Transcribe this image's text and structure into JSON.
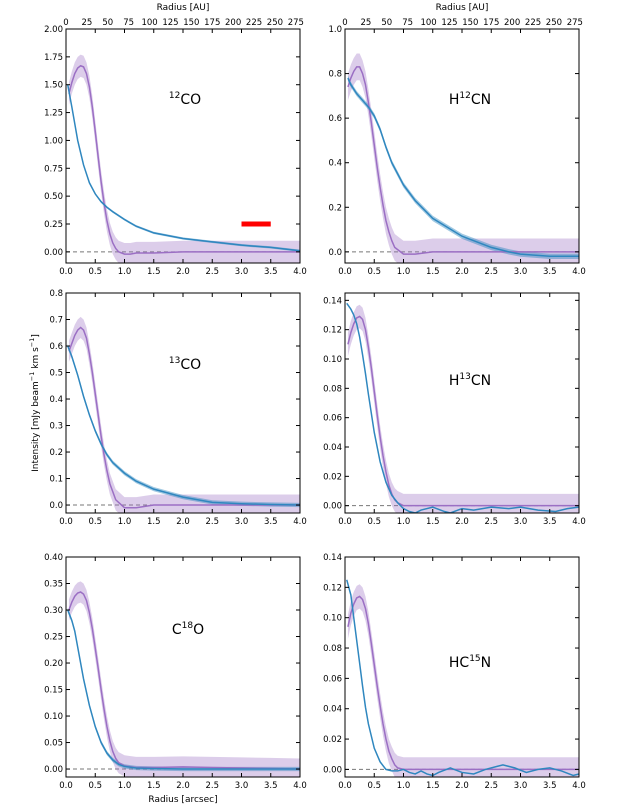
{
  "figure": {
    "top_axis_label": "Radius [AU]",
    "x_axis_label": "Radius [arcsec]",
    "y_axis_label": "Intensity [mJy beam",
    "y_axis_label_sup1": "−1",
    "y_axis_label_mid": " km s",
    "y_axis_label_sup2": "−1",
    "y_axis_label_end": "]"
  },
  "chart_data": [
    {
      "type": "line",
      "panel": "top-left",
      "label_parts": {
        "pre": "",
        "sup": "12",
        "post": "CO"
      },
      "xlim": [
        0,
        4
      ],
      "ylim": [
        -0.1,
        2.0
      ],
      "yticks": [
        "0.00",
        "0.25",
        "0.50",
        "0.75",
        "1.00",
        "1.25",
        "1.50",
        "1.75",
        "2.00"
      ],
      "ytick_values": [
        0,
        0.25,
        0.5,
        0.75,
        1.0,
        1.25,
        1.5,
        1.75,
        2.0
      ],
      "xticks": [
        "0.0",
        "0.5",
        "1.0",
        "1.5",
        "2.0",
        "2.5",
        "3.0",
        "3.5",
        "4.0"
      ],
      "top_xticks": [
        "0",
        "25",
        "50",
        "75",
        "100",
        "125",
        "150",
        "175",
        "200",
        "225",
        "250",
        "275"
      ],
      "beam_bar": {
        "x_start": 3.0,
        "x_end": 3.5,
        "y": 0.25,
        "color": "#ff0000"
      },
      "series": [
        {
          "color": "#9b6fc4",
          "band": 0.1,
          "x": [
            0.05,
            0.1,
            0.15,
            0.2,
            0.25,
            0.3,
            0.35,
            0.4,
            0.45,
            0.5,
            0.55,
            0.6,
            0.65,
            0.7,
            0.75,
            0.8,
            0.85,
            0.9,
            1.0,
            1.1,
            1.2,
            1.5,
            2.0,
            2.5,
            3.0,
            3.5,
            4.0
          ],
          "y": [
            1.42,
            1.52,
            1.6,
            1.65,
            1.67,
            1.66,
            1.6,
            1.48,
            1.3,
            1.08,
            0.85,
            0.63,
            0.44,
            0.28,
            0.16,
            0.08,
            0.03,
            0.0,
            -0.02,
            -0.02,
            -0.01,
            -0.01,
            0.0,
            0.0,
            0.0,
            0.0,
            0.0
          ]
        },
        {
          "color": "#2f87bf",
          "band": 0.01,
          "x": [
            0.03,
            0.1,
            0.2,
            0.3,
            0.4,
            0.5,
            0.6,
            0.7,
            0.8,
            1.0,
            1.2,
            1.5,
            2.0,
            2.5,
            3.0,
            3.5,
            4.0
          ],
          "y": [
            1.5,
            1.3,
            1.0,
            0.78,
            0.62,
            0.52,
            0.45,
            0.4,
            0.36,
            0.29,
            0.23,
            0.17,
            0.12,
            0.09,
            0.06,
            0.04,
            0.01
          ]
        }
      ]
    },
    {
      "type": "line",
      "panel": "top-right",
      "label_parts": {
        "pre": "H",
        "sup": "12",
        "post": "CN"
      },
      "xlim": [
        0,
        4
      ],
      "ylim": [
        -0.05,
        1.0
      ],
      "yticks": [
        "0.0",
        "0.2",
        "0.4",
        "0.6",
        "0.8",
        "1.0"
      ],
      "ytick_values": [
        0,
        0.2,
        0.4,
        0.6,
        0.8,
        1.0
      ],
      "xticks": [
        "0.0",
        "0.5",
        "1.0",
        "1.5",
        "2.0",
        "2.5",
        "3.0",
        "3.5",
        "4.0"
      ],
      "top_xticks": [
        "0",
        "25",
        "50",
        "75",
        "100",
        "125",
        "150",
        "175",
        "200",
        "225",
        "250",
        "275"
      ],
      "series": [
        {
          "color": "#9b6fc4",
          "band": 0.06,
          "x": [
            0.05,
            0.1,
            0.15,
            0.2,
            0.25,
            0.3,
            0.35,
            0.4,
            0.45,
            0.5,
            0.55,
            0.6,
            0.65,
            0.7,
            0.75,
            0.8,
            0.85,
            0.9,
            1.0,
            1.2,
            1.5,
            2.0,
            2.5,
            3.0,
            3.5,
            4.0
          ],
          "y": [
            0.74,
            0.78,
            0.81,
            0.83,
            0.83,
            0.8,
            0.75,
            0.67,
            0.58,
            0.48,
            0.38,
            0.29,
            0.21,
            0.14,
            0.09,
            0.05,
            0.02,
            0.01,
            -0.01,
            -0.01,
            0.0,
            0.0,
            0.0,
            0.0,
            0.0,
            0.0
          ]
        },
        {
          "color": "#2f87bf",
          "band": 0.012,
          "x": [
            0.05,
            0.1,
            0.2,
            0.3,
            0.4,
            0.5,
            0.6,
            0.7,
            0.8,
            1.0,
            1.2,
            1.5,
            2.0,
            2.5,
            2.8,
            3.0,
            3.5,
            4.0
          ],
          "y": [
            0.78,
            0.75,
            0.71,
            0.68,
            0.65,
            0.61,
            0.55,
            0.47,
            0.4,
            0.3,
            0.23,
            0.15,
            0.07,
            0.02,
            0.0,
            -0.01,
            -0.02,
            -0.02
          ]
        }
      ]
    },
    {
      "type": "line",
      "panel": "middle-left",
      "label_parts": {
        "pre": "",
        "sup": "13",
        "post": "CO"
      },
      "xlim": [
        0,
        4
      ],
      "ylim": [
        -0.03,
        0.8
      ],
      "yticks": [
        "0.0",
        "0.1",
        "0.2",
        "0.3",
        "0.4",
        "0.5",
        "0.6",
        "0.7",
        "0.8"
      ],
      "ytick_values": [
        0,
        0.1,
        0.2,
        0.3,
        0.4,
        0.5,
        0.6,
        0.7,
        0.8
      ],
      "xticks": [
        "0.0",
        "0.5",
        "1.0",
        "1.5",
        "2.0",
        "2.5",
        "3.0",
        "3.5",
        "4.0"
      ],
      "series": [
        {
          "color": "#9b6fc4",
          "band": 0.04,
          "x": [
            0.05,
            0.1,
            0.15,
            0.2,
            0.25,
            0.3,
            0.35,
            0.4,
            0.45,
            0.5,
            0.55,
            0.6,
            0.65,
            0.7,
            0.75,
            0.8,
            0.85,
            0.9,
            1.0,
            1.2,
            1.5,
            2.0,
            2.5,
            3.0,
            3.5,
            4.0
          ],
          "y": [
            0.58,
            0.61,
            0.64,
            0.66,
            0.67,
            0.66,
            0.63,
            0.57,
            0.5,
            0.42,
            0.34,
            0.26,
            0.19,
            0.13,
            0.08,
            0.05,
            0.02,
            0.01,
            -0.01,
            -0.01,
            0.0,
            0.0,
            0.0,
            0.0,
            0.0,
            0.0
          ]
        },
        {
          "color": "#2f87bf",
          "band": 0.008,
          "x": [
            0.03,
            0.1,
            0.2,
            0.3,
            0.4,
            0.5,
            0.6,
            0.7,
            0.8,
            0.9,
            1.0,
            1.2,
            1.5,
            2.0,
            2.5,
            3.0,
            3.5,
            4.0
          ],
          "y": [
            0.6,
            0.56,
            0.49,
            0.41,
            0.34,
            0.28,
            0.23,
            0.19,
            0.16,
            0.14,
            0.12,
            0.09,
            0.06,
            0.03,
            0.01,
            0.005,
            0.002,
            0.0
          ]
        }
      ]
    },
    {
      "type": "line",
      "panel": "middle-right",
      "label_parts": {
        "pre": "H",
        "sup": "13",
        "post": "CN"
      },
      "xlim": [
        0,
        4
      ],
      "ylim": [
        -0.005,
        0.145
      ],
      "yticks": [
        "0.00",
        "0.02",
        "0.04",
        "0.06",
        "0.08",
        "0.10",
        "0.12",
        "0.14"
      ],
      "ytick_values": [
        0,
        0.02,
        0.04,
        0.06,
        0.08,
        0.1,
        0.12,
        0.14
      ],
      "xticks": [
        "0.0",
        "0.5",
        "1.0",
        "1.5",
        "2.0",
        "2.5",
        "3.0",
        "3.5",
        "4.0"
      ],
      "series": [
        {
          "color": "#9b6fc4",
          "band": 0.008,
          "x": [
            0.05,
            0.1,
            0.15,
            0.2,
            0.25,
            0.3,
            0.35,
            0.4,
            0.45,
            0.5,
            0.55,
            0.6,
            0.65,
            0.7,
            0.75,
            0.8,
            0.85,
            0.9,
            1.0,
            1.2,
            1.5,
            2.0,
            2.5,
            3.0,
            3.5,
            4.0
          ],
          "y": [
            0.11,
            0.118,
            0.124,
            0.128,
            0.129,
            0.127,
            0.12,
            0.108,
            0.094,
            0.078,
            0.062,
            0.047,
            0.034,
            0.023,
            0.014,
            0.008,
            0.004,
            0.002,
            0.0,
            0.0,
            0.0,
            0.0,
            0.0,
            0.0,
            0.0,
            0.0
          ]
        },
        {
          "color": "#2f87bf",
          "band": 0.0,
          "x": [
            0.03,
            0.1,
            0.15,
            0.2,
            0.25,
            0.3,
            0.35,
            0.4,
            0.5,
            0.6,
            0.7,
            0.8,
            0.9,
            1.0,
            1.1,
            1.2,
            1.3,
            1.5,
            1.7,
            1.8,
            2.0,
            2.2,
            2.5,
            2.8,
            3.0,
            3.3,
            3.6,
            3.8,
            4.0
          ],
          "y": [
            0.138,
            0.134,
            0.13,
            0.124,
            0.115,
            0.103,
            0.09,
            0.076,
            0.05,
            0.03,
            0.016,
            0.007,
            0.002,
            -0.002,
            -0.004,
            -0.005,
            -0.003,
            -0.001,
            -0.004,
            -0.005,
            -0.002,
            -0.003,
            -0.001,
            -0.002,
            -0.001,
            -0.003,
            -0.004,
            -0.002,
            -0.001
          ]
        }
      ]
    },
    {
      "type": "line",
      "panel": "bottom-left",
      "label_parts": {
        "pre": "C",
        "sup": "18",
        "post": "O"
      },
      "xlim": [
        0,
        4
      ],
      "ylim": [
        -0.015,
        0.4
      ],
      "yticks": [
        "0.00",
        "0.05",
        "0.10",
        "0.15",
        "0.20",
        "0.25",
        "0.30",
        "0.35",
        "0.40"
      ],
      "ytick_values": [
        0,
        0.05,
        0.1,
        0.15,
        0.2,
        0.25,
        0.3,
        0.35,
        0.4
      ],
      "xticks": [
        "0.0",
        "0.5",
        "1.0",
        "1.5",
        "2.0",
        "2.5",
        "3.0",
        "3.5",
        "4.0"
      ],
      "series": [
        {
          "color": "#9b6fc4",
          "band": 0.02,
          "x": [
            0.05,
            0.1,
            0.15,
            0.2,
            0.25,
            0.3,
            0.35,
            0.4,
            0.45,
            0.5,
            0.55,
            0.6,
            0.65,
            0.7,
            0.75,
            0.8,
            0.85,
            0.9,
            1.0,
            1.2,
            1.5,
            2.0,
            2.5,
            3.0,
            3.5,
            4.0
          ],
          "y": [
            0.3,
            0.315,
            0.326,
            0.332,
            0.334,
            0.33,
            0.318,
            0.295,
            0.265,
            0.228,
            0.19,
            0.15,
            0.113,
            0.08,
            0.053,
            0.033,
            0.02,
            0.012,
            0.006,
            0.003,
            0.003,
            0.004,
            0.003,
            0.002,
            0.001,
            0.0
          ]
        },
        {
          "color": "#2f87bf",
          "band": 0.004,
          "x": [
            0.03,
            0.1,
            0.15,
            0.2,
            0.3,
            0.4,
            0.5,
            0.6,
            0.7,
            0.8,
            0.9,
            1.0,
            1.2,
            1.5,
            2.0,
            2.5,
            3.0,
            3.5,
            4.0
          ],
          "y": [
            0.3,
            0.28,
            0.26,
            0.23,
            0.17,
            0.12,
            0.08,
            0.05,
            0.03,
            0.017,
            0.009,
            0.005,
            0.002,
            0.001,
            0.0,
            0.0,
            0.0,
            0.0,
            0.0
          ]
        }
      ]
    },
    {
      "type": "line",
      "panel": "bottom-right",
      "label_parts": {
        "pre": "HC",
        "sup": "15",
        "post": "N"
      },
      "xlim": [
        0,
        4
      ],
      "ylim": [
        -0.005,
        0.14
      ],
      "yticks": [
        "0.00",
        "0.02",
        "0.04",
        "0.06",
        "0.08",
        "0.10",
        "0.12",
        "0.14"
      ],
      "ytick_values": [
        0,
        0.02,
        0.04,
        0.06,
        0.08,
        0.1,
        0.12,
        0.14
      ],
      "xticks": [
        "0.0",
        "0.5",
        "1.0",
        "1.5",
        "2.0",
        "2.5",
        "3.0",
        "3.5",
        "4.0"
      ],
      "series": [
        {
          "color": "#9b6fc4",
          "band": 0.008,
          "x": [
            0.05,
            0.1,
            0.15,
            0.2,
            0.25,
            0.3,
            0.35,
            0.4,
            0.45,
            0.5,
            0.55,
            0.6,
            0.65,
            0.7,
            0.75,
            0.8,
            0.85,
            0.9,
            1.0,
            1.2,
            1.5,
            2.0,
            2.5,
            3.0,
            3.5,
            4.0
          ],
          "y": [
            0.094,
            0.103,
            0.109,
            0.113,
            0.114,
            0.112,
            0.106,
            0.096,
            0.083,
            0.069,
            0.055,
            0.042,
            0.03,
            0.02,
            0.012,
            0.007,
            0.003,
            0.001,
            0.0,
            0.0,
            0.0,
            0.0,
            0.0,
            0.0,
            0.0,
            0.0
          ]
        },
        {
          "color": "#2f87bf",
          "band": 0.0,
          "x": [
            0.03,
            0.1,
            0.15,
            0.2,
            0.25,
            0.3,
            0.35,
            0.4,
            0.5,
            0.6,
            0.7,
            0.8,
            0.9,
            1.0,
            1.1,
            1.2,
            1.3,
            1.4,
            1.5,
            1.6,
            1.8,
            2.0,
            2.2,
            2.4,
            2.6,
            2.7,
            2.9,
            3.1,
            3.3,
            3.5,
            3.7,
            3.9,
            4.0
          ],
          "y": [
            0.125,
            0.115,
            0.1,
            0.085,
            0.07,
            0.055,
            0.041,
            0.03,
            0.014,
            0.005,
            0.0,
            -0.001,
            -0.001,
            0.0,
            -0.002,
            -0.003,
            -0.001,
            -0.003,
            -0.004,
            -0.002,
            0.001,
            -0.002,
            -0.003,
            0.0,
            0.002,
            0.003,
            0.001,
            -0.002,
            0.0,
            0.001,
            -0.001,
            -0.004,
            -0.003
          ]
        }
      ]
    }
  ]
}
